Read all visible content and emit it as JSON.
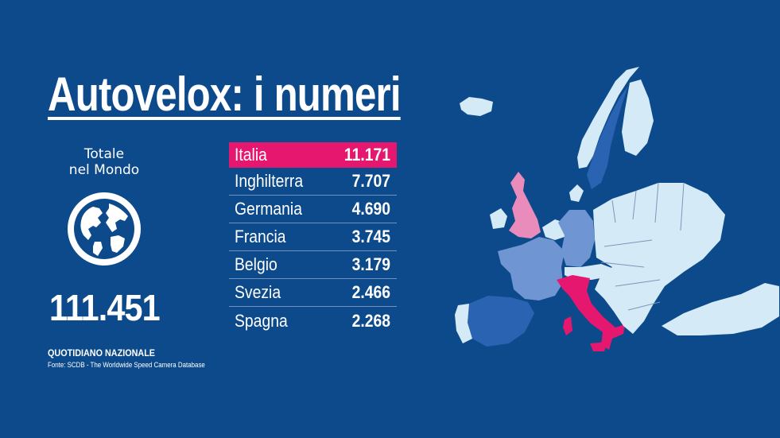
{
  "title": "Autovelox: i numeri",
  "world": {
    "label_line1": "Totale",
    "label_line2": "nel Mondo",
    "total": "111.451",
    "icon": "globe-icon"
  },
  "source": {
    "publisher": "QUOTIDIANO NAZIONALE",
    "note": "Fonte:  SCDB - The Worldwide Speed Camera Database"
  },
  "colors": {
    "background": "#0d4a8c",
    "highlight": "#e5176f",
    "uk": "#e98bbb",
    "dark_blue": "#2a63b2",
    "mid_blue": "#6f95d2",
    "light_blue": "#d4ebf7"
  },
  "chart_data": {
    "type": "table",
    "categories": [
      "Italia",
      "Inghilterra",
      "Germania",
      "Francia",
      "Belgio",
      "Svezia",
      "Spagna"
    ],
    "values": [
      11171,
      7707,
      4690,
      3745,
      3179,
      2466,
      2268
    ],
    "value_labels": [
      "11.171",
      "7.707",
      "4.690",
      "3.745",
      "3.179",
      "2.466",
      "2.268"
    ],
    "highlighted": "Italia"
  }
}
